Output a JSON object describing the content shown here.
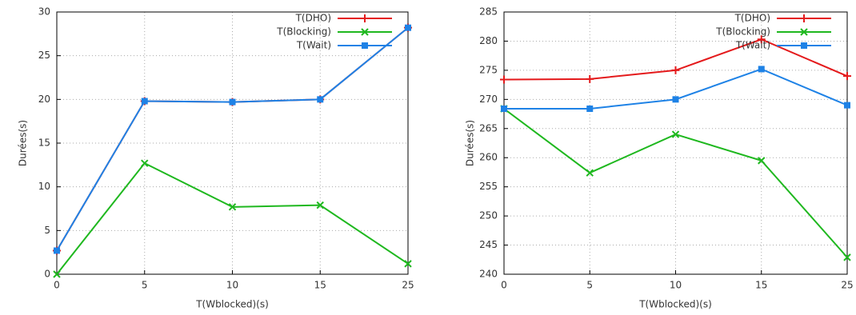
{
  "chart_data": [
    {
      "type": "line",
      "xlabel": "T(Wblocked)(s)",
      "ylabel": "Durées(s)",
      "categories": [
        "0",
        "5",
        "10",
        "15",
        "25"
      ],
      "series": [
        {
          "name": "T(DHO)",
          "color": "#e41a1c",
          "marker": "plus",
          "values": [
            2.7,
            19.8,
            19.7,
            20.0,
            28.2
          ]
        },
        {
          "name": "T(Blocking)",
          "color": "#1fb81f",
          "marker": "cross",
          "values": [
            0,
            12.7,
            7.7,
            7.9,
            1.2
          ]
        },
        {
          "name": "T(Wait)",
          "color": "#1e82e6",
          "marker": "square",
          "values": [
            2.7,
            19.8,
            19.7,
            20.0,
            28.2
          ]
        }
      ],
      "ylim": [
        0,
        30
      ],
      "yticks": [
        0,
        5,
        10,
        15,
        20,
        25,
        30
      ],
      "grid": true,
      "legend": "top-right"
    },
    {
      "type": "line",
      "xlabel": "T(Wblocked)(s)",
      "ylabel": "Durées(s)",
      "categories": [
        "0",
        "5",
        "10",
        "15",
        "25"
      ],
      "series": [
        {
          "name": "T(DHO)",
          "color": "#e41a1c",
          "marker": "plus",
          "values": [
            273.4,
            273.5,
            275.0,
            280.3,
            274.0
          ]
        },
        {
          "name": "T(Blocking)",
          "color": "#1fb81f",
          "marker": "cross",
          "values": [
            268.4,
            257.4,
            264.0,
            259.5,
            242.9
          ]
        },
        {
          "name": "T(Wait)",
          "color": "#1e82e6",
          "marker": "square",
          "values": [
            268.4,
            268.4,
            270.0,
            275.2,
            269.0
          ]
        }
      ],
      "ylim": [
        240,
        285
      ],
      "yticks": [
        240,
        245,
        250,
        255,
        260,
        265,
        270,
        275,
        280,
        285
      ],
      "grid": true,
      "legend": "top-right"
    }
  ]
}
